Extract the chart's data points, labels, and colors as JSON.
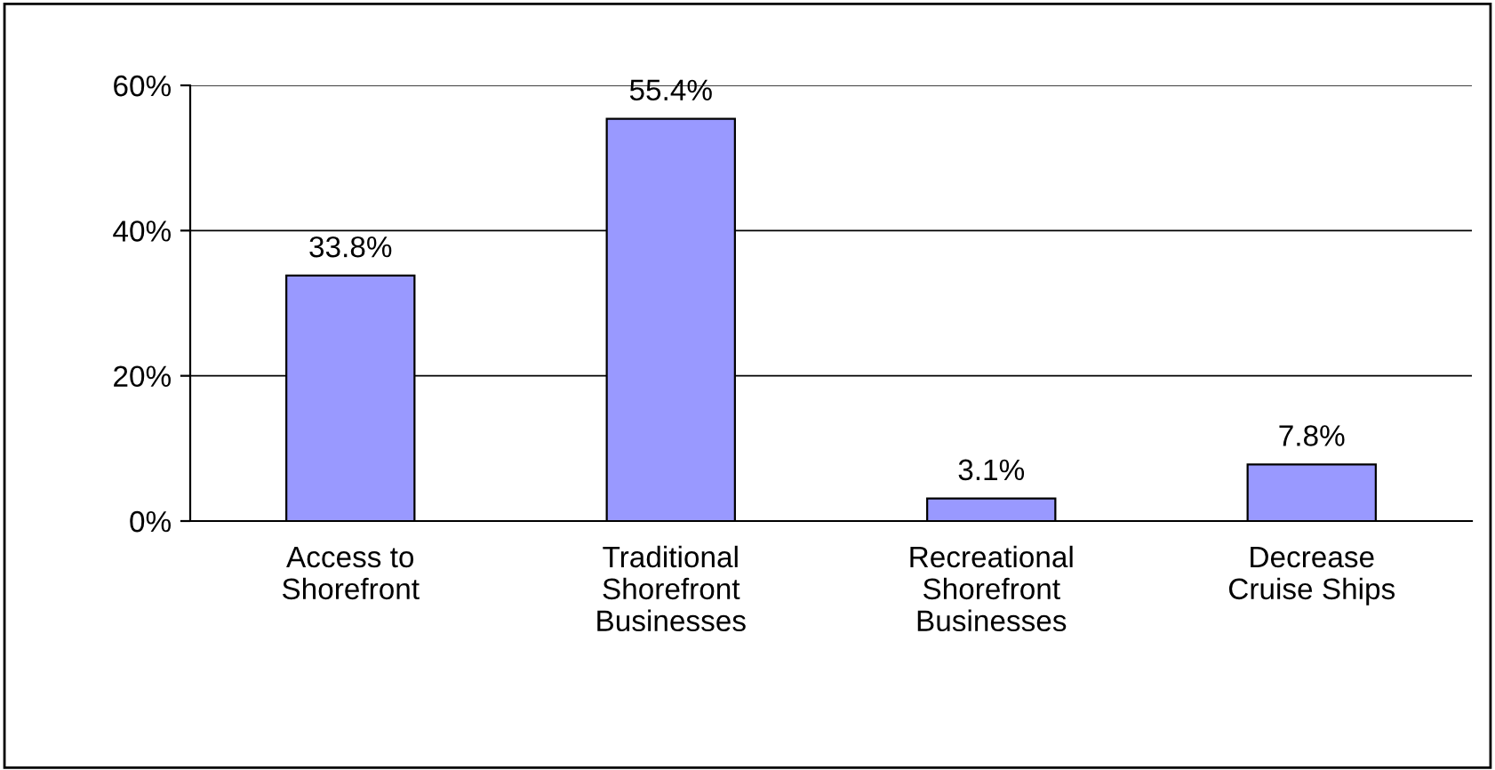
{
  "chart_data": {
    "type": "bar",
    "categories": [
      "Access to\nShorefront",
      "Traditional\nShorefront\nBusinesses",
      "Recreational\nShorefront\nBusinesses",
      "Decrease\nCruise Ships"
    ],
    "values": [
      33.8,
      55.4,
      3.1,
      7.8
    ],
    "value_labels": [
      "33.8%",
      "55.4%",
      "3.1%",
      "7.8%"
    ],
    "color": "#9999ff",
    "ylim": [
      0,
      60
    ],
    "yticks": [
      {
        "value": 0,
        "label": "0%"
      },
      {
        "value": 20,
        "label": "20%"
      },
      {
        "value": 40,
        "label": "40%"
      },
      {
        "value": 60,
        "label": "60%"
      }
    ],
    "grid": "y",
    "legend": false
  }
}
